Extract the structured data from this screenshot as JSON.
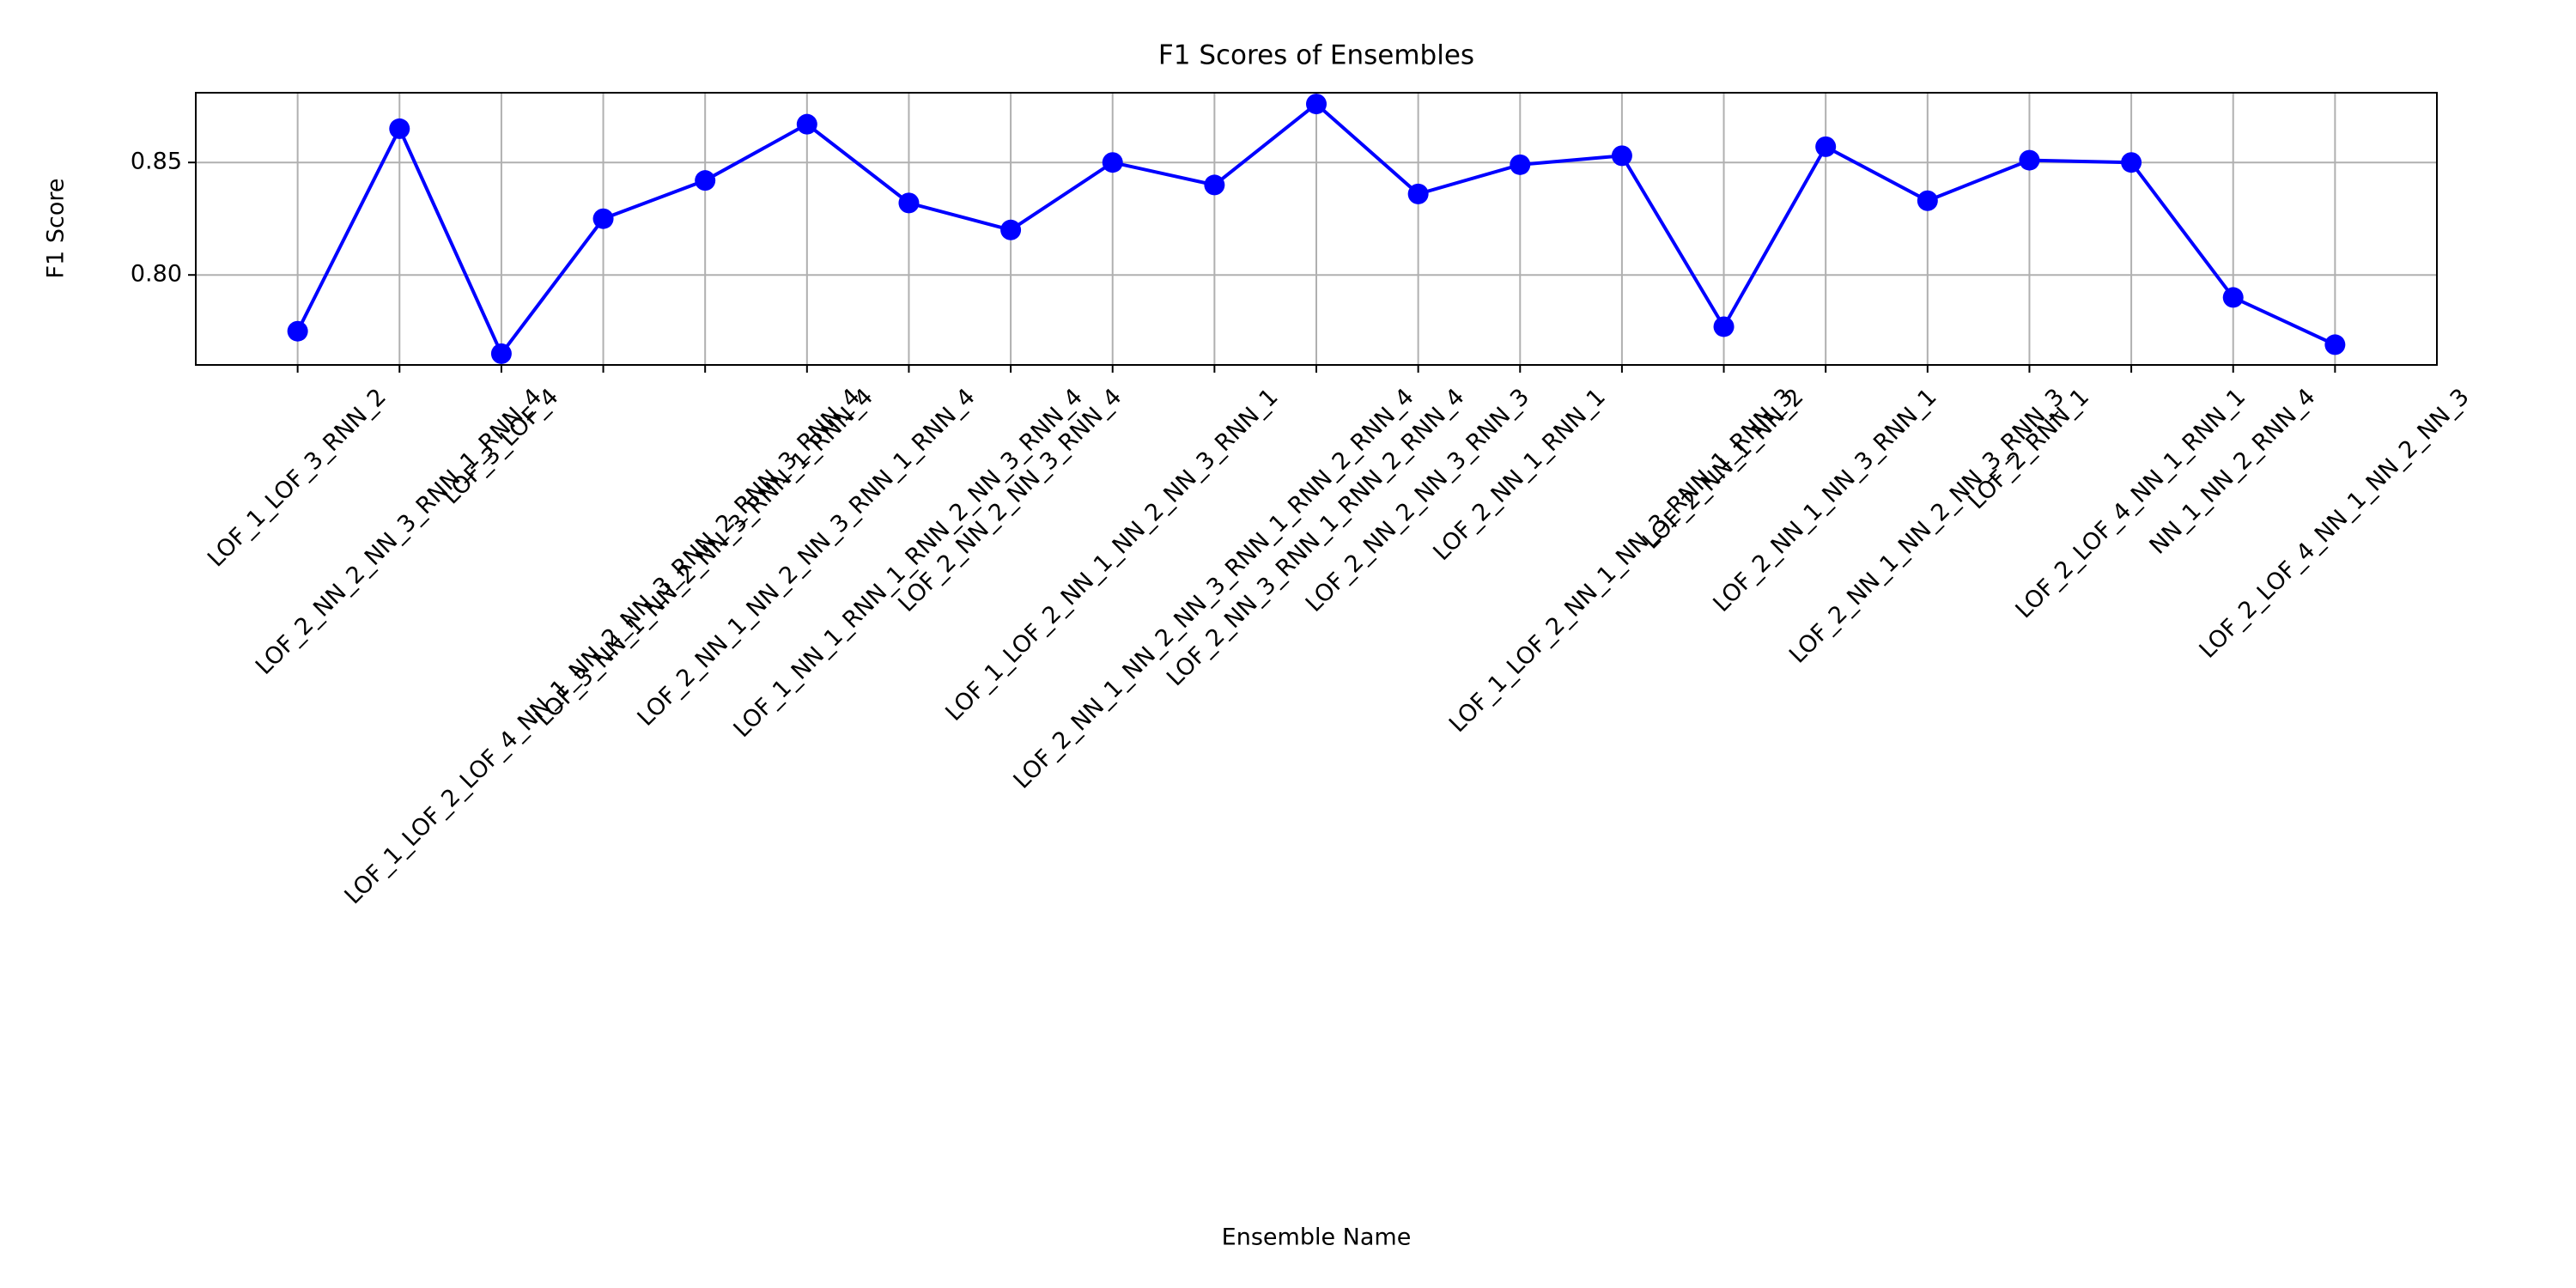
{
  "chart_data": {
    "type": "line",
    "title": "F1 Scores of Ensembles",
    "x_label": "Ensemble Name",
    "y_label": "F1 Score",
    "categories": [
      "LOF_1_LOF_3_RNN_2",
      "LOF_2_NN_2_NN_3_RNN_1_RNN_4",
      "LOF_3_LOF_4",
      "LOF_1_LOF_2_LOF_4_NN_1_NN_2_NN_3_RNN_2_RNN_3_RNN_4",
      "LOF_3_NN_1_NN_2_NN_3_RNN_1_RNN_4",
      "LOF_2_NN_1_NN_2_NN_3_RNN_1_RNN_4",
      "LOF_1_NN_1_RNN_1_RNN_2_NN_3_RNN_4",
      "LOF_2_NN_2_NN_3_RNN_4",
      "LOF_1_LOF_2_NN_1_NN_2_NN_3_RNN_1",
      "LOF_2_NN_1_NN_2_NN_3_RNN_1_RNN_2_RNN_4",
      "LOF_2_NN_3_RNN_1_RNN_2_RNN_4",
      "LOF_2_NN_2_NN_3_RNN_3",
      "LOF_2_NN_1_RNN_1",
      "LOF_1_LOF_2_NN_1_NN_3_RNN_1_RNN_3",
      "LOF_2_NN_1_NN_2",
      "LOF_2_NN_1_NN_3_RNN_1",
      "LOF_2_NN_1_NN_2_NN_3_RNN_3",
      "LOF_2_RNN_1",
      "LOF_2_LOF_4_NN_1_RNN_1",
      "NN_1_NN_2_RNN_4",
      "LOF_2_LOF_4_NN_1_NN_2_NN_3"
    ],
    "values": [
      0.775,
      0.865,
      0.765,
      0.825,
      0.842,
      0.867,
      0.832,
      0.82,
      0.85,
      0.84,
      0.876,
      0.836,
      0.849,
      0.853,
      0.777,
      0.857,
      0.833,
      0.851,
      0.85,
      0.79,
      0.769
    ],
    "color": "#0000ff",
    "ylim": [
      0.76,
      0.881
    ],
    "yticks": [
      {
        "value": 0.8,
        "label": "0.80"
      },
      {
        "value": 0.85,
        "label": "0.85"
      }
    ],
    "grid": true
  }
}
